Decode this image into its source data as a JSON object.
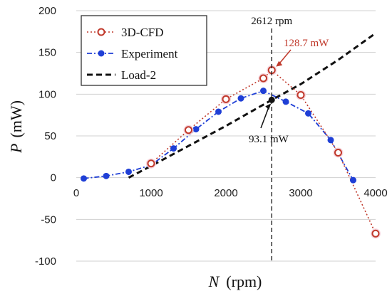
{
  "chart_data": {
    "type": "line",
    "xlabel_var": "N",
    "xlabel_unit": "(rpm)",
    "ylabel_var": "P",
    "ylabel_unit": "(mW)",
    "xlim": [
      0,
      4000
    ],
    "ylim": [
      -100,
      200
    ],
    "x_ticks": [
      0,
      1000,
      2000,
      3000,
      4000
    ],
    "y_ticks": [
      -100,
      -50,
      0,
      50,
      100,
      150,
      200
    ],
    "grid": "horizontal",
    "legend_placement": "top-left",
    "series": [
      {
        "name": "3D-CFD",
        "color": "#c0392b",
        "marker": "hollow-circle",
        "line": "dotted",
        "x": [
          1000,
          1500,
          2000,
          2500,
          2612,
          3000,
          3500,
          4000
        ],
        "y": [
          17,
          57,
          94,
          119,
          128.7,
          99,
          30,
          -67
        ]
      },
      {
        "name": "Experiment",
        "color": "#1f3fd6",
        "marker": "filled-circle",
        "line": "dash-dot",
        "x": [
          100,
          400,
          700,
          1000,
          1300,
          1600,
          1900,
          2200,
          2500,
          2800,
          3100,
          3400,
          3700
        ],
        "y": [
          -1,
          2,
          7,
          15,
          35,
          58,
          79,
          95,
          104,
          91,
          77,
          45,
          -3
        ]
      },
      {
        "name": "Load-2",
        "color": "#111111",
        "line": "dashed",
        "x": [
          700,
          1000,
          1500,
          2000,
          2612,
          3000,
          3500,
          4000
        ],
        "y": [
          0,
          14,
          38,
          62,
          93.1,
          112,
          141,
          173
        ]
      }
    ],
    "annotations": {
      "vline_x": 2612,
      "vline_label": "2612 rpm",
      "peak_label": "128.7 mW",
      "peak_color": "#c0392b",
      "intersection_label": "93.1 mW",
      "intersection_x": 2612,
      "intersection_y": 93.1,
      "peak_x": 2612,
      "peak_y": 128.7
    }
  }
}
